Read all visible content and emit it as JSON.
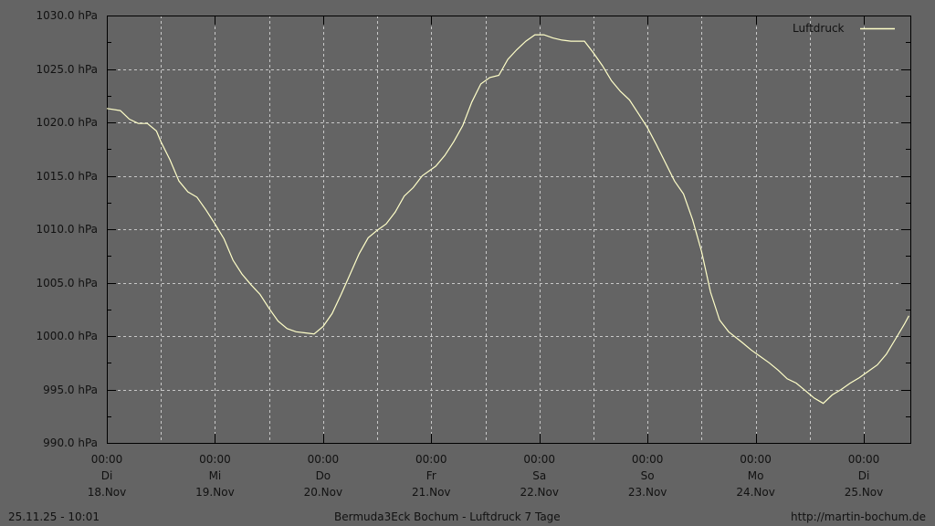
{
  "chart_data": {
    "type": "line",
    "title": "Bermuda3Eck Bochum - Luftdruck 7 Tage",
    "footer_left": "25.11.25 - 10:01",
    "footer_right": "http://martin-bochum.de",
    "xlim": [
      "2025-11-18 00:00",
      "2025-11-25 10:20"
    ],
    "ylim": [
      990,
      1030
    ],
    "y_ticks": [
      "990.0 hPa",
      "995.0 hPa",
      "1000.0 hPa",
      "1005.0 hPa",
      "1010.0 hPa",
      "1015.0 hPa",
      "1020.0 hPa",
      "1025.0 hPa",
      "1030.0 hPa"
    ],
    "x_ticks": [
      {
        "time": "00:00",
        "day": "Di",
        "date": "18.Nov"
      },
      {
        "time": "00:00",
        "day": "Mi",
        "date": "19.Nov"
      },
      {
        "time": "00:00",
        "day": "Do",
        "date": "20.Nov"
      },
      {
        "time": "00:00",
        "day": "Fr",
        "date": "21.Nov"
      },
      {
        "time": "00:00",
        "day": "Sa",
        "date": "22.Nov"
      },
      {
        "time": "00:00",
        "day": "So",
        "date": "23.Nov"
      },
      {
        "time": "00:00",
        "day": "Mo",
        "date": "24.Nov"
      },
      {
        "time": "00:00",
        "day": "Di",
        "date": "25.Nov"
      }
    ],
    "grid": true,
    "legend_position": "top-right",
    "colors": {
      "background": "#646464",
      "line": "#ffffc8",
      "grid": "#c8c8c8",
      "axis": "#000000"
    },
    "series": [
      {
        "name": "Luftdruck",
        "x": [
          "2025-11-18 00:00",
          "2025-11-18 03:00",
          "2025-11-18 05:00",
          "2025-11-18 07:00",
          "2025-11-18 09:00",
          "2025-11-18 11:00",
          "2025-11-18 12:00",
          "2025-11-18 14:00",
          "2025-11-18 16:00",
          "2025-11-18 18:00",
          "2025-11-18 20:00",
          "2025-11-18 22:00",
          "2025-11-19 00:00",
          "2025-11-19 02:00",
          "2025-11-19 04:00",
          "2025-11-19 06:00",
          "2025-11-19 08:00",
          "2025-11-19 10:00",
          "2025-11-19 12:00",
          "2025-11-19 14:00",
          "2025-11-19 16:00",
          "2025-11-19 18:00",
          "2025-11-19 20:00",
          "2025-11-19 22:00",
          "2025-11-20 00:00",
          "2025-11-20 02:00",
          "2025-11-20 04:00",
          "2025-11-20 06:00",
          "2025-11-20 08:00",
          "2025-11-20 10:00",
          "2025-11-20 12:00",
          "2025-11-20 14:00",
          "2025-11-20 16:00",
          "2025-11-20 18:00",
          "2025-11-20 20:00",
          "2025-11-20 22:00",
          "2025-11-21 01:00",
          "2025-11-21 03:00",
          "2025-11-21 05:00",
          "2025-11-21 07:00",
          "2025-11-21 09:00",
          "2025-11-21 11:00",
          "2025-11-21 13:00",
          "2025-11-21 15:00",
          "2025-11-21 17:00",
          "2025-11-21 19:00",
          "2025-11-21 21:00",
          "2025-11-21 23:00",
          "2025-11-22 01:00",
          "2025-11-22 03:00",
          "2025-11-22 05:00",
          "2025-11-22 07:00",
          "2025-11-22 10:00",
          "2025-11-22 12:00",
          "2025-11-22 14:00",
          "2025-11-22 16:00",
          "2025-11-22 18:00",
          "2025-11-22 20:00",
          "2025-11-22 22:00",
          "2025-11-23 00:00",
          "2025-11-23 02:00",
          "2025-11-23 04:00",
          "2025-11-23 06:00",
          "2025-11-23 08:00",
          "2025-11-23 10:00",
          "2025-11-23 12:00",
          "2025-11-23 14:00",
          "2025-11-23 16:00",
          "2025-11-23 18:00",
          "2025-11-23 21:00",
          "2025-11-23 23:00",
          "2025-11-24 01:00",
          "2025-11-24 03:00",
          "2025-11-24 05:00",
          "2025-11-24 07:00",
          "2025-11-24 09:00",
          "2025-11-24 11:00",
          "2025-11-24 13:00",
          "2025-11-24 15:00",
          "2025-11-24 17:00",
          "2025-11-24 19:00",
          "2025-11-24 21:00",
          "2025-11-24 23:00",
          "2025-11-25 01:00",
          "2025-11-25 03:00",
          "2025-11-25 05:00",
          "2025-11-25 07:00",
          "2025-11-25 09:00",
          "2025-11-25 10:00"
        ],
        "y": [
          1021.3,
          1021.1,
          1020.3,
          1019.9,
          1019.9,
          1019.2,
          1018.2,
          1016.5,
          1014.5,
          1013.5,
          1013.0,
          1011.8,
          1010.5,
          1009.1,
          1007.1,
          1005.8,
          1004.8,
          1003.9,
          1002.6,
          1001.4,
          1000.7,
          1000.4,
          1000.3,
          1000.2,
          1000.9,
          1002.1,
          1003.9,
          1005.8,
          1007.7,
          1009.2,
          1009.9,
          1010.5,
          1011.6,
          1013.1,
          1013.9,
          1015.0,
          1015.9,
          1016.9,
          1018.2,
          1019.7,
          1021.9,
          1023.6,
          1024.2,
          1024.4,
          1025.9,
          1026.8,
          1027.6,
          1028.2,
          1028.2,
          1027.9,
          1027.7,
          1027.6,
          1027.6,
          1026.5,
          1025.3,
          1023.9,
          1022.9,
          1022.1,
          1020.8,
          1019.5,
          1017.9,
          1016.2,
          1014.5,
          1013.3,
          1010.9,
          1007.9,
          1004.1,
          1001.5,
          1000.4,
          999.4,
          998.7,
          998.1,
          997.5,
          996.8,
          996.0,
          995.6,
          994.9,
          994.2,
          993.7,
          994.5,
          995.0,
          995.6,
          996.1,
          996.7,
          997.3,
          998.3,
          999.7,
          1001.1,
          1001.9
        ]
      }
    ]
  }
}
